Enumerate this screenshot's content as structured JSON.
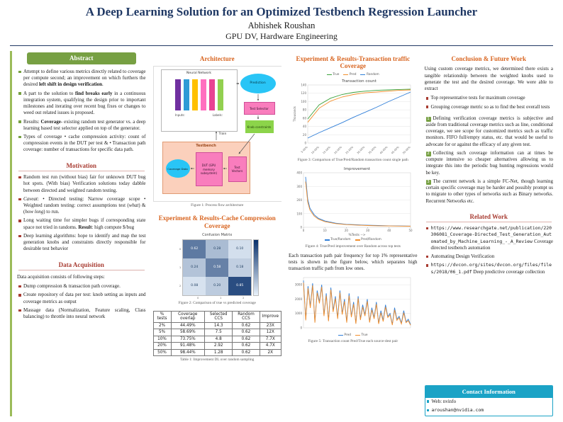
{
  "palette": {
    "navy": "#1F3864",
    "green": "#77A043",
    "green_light": "#9BBB59",
    "red": "#A83C32",
    "orange": "#D8641F",
    "teal": "#1BA3C6",
    "cyan": "#29C5F6",
    "salmon": "#FBD0BC"
  },
  "header": {
    "title": "A Deep Learning Solution for an Optimized Testbench Regression Launcher",
    "author": "Abhishek Roushan",
    "affiliation": "GPU DV, Hardware Engineering"
  },
  "abstract": {
    "title": "Abstract",
    "bullets": [
      [
        {
          "t": "Attempt to define various metrics directly related to coverage per compute second; an improvement on which furthers the desired "
        },
        {
          "t": "left shift in design verification",
          "b": true
        },
        {
          "t": "."
        }
      ],
      [
        {
          "t": "A part to the solution to "
        },
        {
          "t": "find breaks early",
          "b": true
        },
        {
          "t": " in a continuous integration system, qualifying the design prior to important milestones and iterating over recent bug fixes or changes to weed out related issues is proposed."
        }
      ],
      [
        {
          "t": "Results: "
        },
        {
          "t": "Coverage",
          "b": true
        },
        {
          "t": "- existing random test generator vs. a deep learning based test selector applied on top of the generator."
        }
      ],
      [
        {
          "t": "Types of coverage • cache compression activity: count of compression events in the DUT per test & • Transaction path coverage: number of transactions for specific data path."
        }
      ]
    ]
  },
  "motivation": {
    "title": "Motivation",
    "bullets": [
      [
        {
          "t": "Random test run (without bias) fair for unknown DUT bug hot spots. (With bias) Verification solutions today dabble between directed and weighted random testing."
        }
      ],
      [
        {
          "t": "Caveat",
          "i": true
        },
        {
          "t": ": • Directed testing: Narrow coverage scope • Weighted random testing: correct assumptions test ("
        },
        {
          "t": "what",
          "i": true
        },
        {
          "t": ") & ("
        },
        {
          "t": "how long",
          "i": true
        },
        {
          "t": ") to run."
        }
      ],
      [
        {
          "t": "Long waiting time for simpler bugs if corresponding state space not tried in randoms. "
        },
        {
          "t": "Result",
          "b": true
        },
        {
          "t": ": high compute $/bug"
        }
      ],
      [
        {
          "t": "Deep learning algorithms: hope to identify and map the test generation knobs and constraints directly responsible for desirable test behavior"
        }
      ]
    ]
  },
  "data_acquisition": {
    "title": "Data Acquisition",
    "intro": "Data acquisition consists of following steps:",
    "bullets": [
      "Dump compression & transaction path coverage.",
      "Create repository of data per test: knob setting as inputs and coverage metrics as output",
      "Massage data (Normalization, Feature scaling, Class balancing) to throttle into neural network"
    ]
  },
  "architecture": {
    "title": "Architecture",
    "figure1": {
      "caption": "Figure 1: Process flow architecture",
      "labels": {
        "neural_network": "Neural Network",
        "prediction": "Prediction",
        "test_selector": "Test Selector",
        "knob_constraints": "Knob constraints",
        "train": "Train",
        "testbench": "Testbench",
        "dut": "DUT (GPU memory subsystem)",
        "test_vectors": "Test Vectors",
        "coverage_data": "Coverage Data",
        "inputs_label": "Inputs:",
        "labels_label": "Labels:"
      }
    }
  },
  "cache_results": {
    "title": "Experiment & Results-Cache Compression Coverage",
    "figure2_caption": "Figure 2: Comparison of true vs predicted coverage",
    "table1": {
      "caption": "Table 1: Improvement DL over random sampling",
      "headers": [
        "% tests",
        "Coverage overlap",
        "Selected CCS",
        "Random CCS",
        "Improve"
      ],
      "rows": [
        [
          "2%",
          "44.49%",
          "14.3",
          "0.62",
          "23X"
        ],
        [
          "5%",
          "58.69%",
          "7.5",
          "0.62",
          "12X"
        ],
        [
          "10%",
          "73.75%",
          "4.8",
          "0.62",
          "7.7X"
        ],
        [
          "20%",
          "91.48%",
          "2.92",
          "0.62",
          "4.7X"
        ],
        [
          "50%",
          "98.44%",
          "1.28",
          "0.62",
          "2X"
        ]
      ]
    }
  },
  "transaction_results": {
    "title": "Experiment & Results-Transaction traffic Coverage",
    "figure3_caption": "Figure 3: Comparison of True/Pred/Random transaction count single path",
    "figure4_caption": "Figure 4: True/Pred improvement over Random across top tests",
    "paragraph": "Each transaction path pair frequency for top 1% representative tests is shown in the figure below, which separates high transaction traffic path from low ones.",
    "figure5_caption": "Figure 5: Transaction count Pred/True each source-dest pair"
  },
  "conclusion": {
    "title": "Conclusion & Future Work",
    "intro": "Using custom coverage metrics, we determined there exists a tangible relationship between the weighted knobs used to generate the test and the desired coverage. We were able to extract",
    "bullets": [
      "Top representative tests for maximum coverage",
      "Grouping coverage metric so as to find the best overall tests"
    ],
    "numbered": [
      "Defining verification coverage metrics is subjective and aside from traditional coverage metrics such as line, conditional coverage, we see scope for customized metrics such as traffic monitors. FIFO full/empty status, etc. that would be useful to advocate for or against the efficacy of any given test.",
      "Collecting such coverage information can at times be compute intensive so cheaper alternatives allowing us to integrate this into the periodic bug hunting regressions would be key.",
      "The current network is a simple FC-Net, though learning certain specific coverage may be harder and possibly prompt us to migrate to other types of networks such as Binary networks. Recurrent Networks etc."
    ]
  },
  "related_work": {
    "title": "Related Work",
    "items": [
      [
        {
          "t": "https://www.researchgate.net/publication/220306081_Coverage-Directed_Test_Generation_Automated_by_Machine_Learning_-_A_Review",
          "code": true
        },
        {
          "t": " Coverage directed testbench automation"
        }
      ],
      [
        {
          "t": "Automating Design Verification"
        }
      ],
      [
        {
          "t": "https://dvcon.org/sites/dvcon.org/files/files/2018/06_1.pdf",
          "code": true
        },
        {
          "t": " Deep predictive coverage collection"
        }
      ]
    ]
  },
  "contact": {
    "title": "Contact Information",
    "items": [
      [
        {
          "t": "Web: nvinfo"
        }
      ],
      [
        {
          "t": "aroushan@nvidia.com",
          "code": true
        }
      ]
    ]
  },
  "chart_data": [
    {
      "id": "fig2_confusion",
      "type": "heatmap",
      "title": "Confusion Matrix",
      "rows": [
        "0",
        "1",
        "2"
      ],
      "cols": [
        "0",
        "1",
        "2"
      ],
      "values": [
        [
          0.62,
          0.28,
          0.1
        ],
        [
          0.24,
          0.58,
          0.18
        ],
        [
          0.08,
          0.2,
          0.85
        ]
      ]
    },
    {
      "id": "fig3_transaction_count",
      "type": "line",
      "title": "Transaction count",
      "ylabel": "Thousands",
      "ylim": [
        0,
        140
      ],
      "yticks": [
        0,
        20,
        40,
        60,
        80,
        100,
        120,
        140
      ],
      "x_tick_labels": [
        "5.00%",
        "10.00%",
        "15.00%",
        "20.00%",
        "25.00%",
        "30.00%",
        "35.00%",
        "40.00%",
        "45.00%",
        "50.00%"
      ],
      "legend_position": "top",
      "series": [
        {
          "name": "True",
          "color": "#3BA23B",
          "values": [
            58,
            92,
            108,
            117,
            122,
            125,
            127,
            128,
            129,
            130
          ]
        },
        {
          "name": "Pred",
          "color": "#F28E2B",
          "values": [
            50,
            84,
            101,
            111,
            117,
            121,
            123,
            125,
            127,
            128
          ]
        },
        {
          "name": "Random",
          "color": "#2F7ED8",
          "values": [
            12,
            25,
            37,
            49,
            62,
            74,
            86,
            99,
            111,
            123
          ]
        }
      ]
    },
    {
      "id": "fig4_improvement",
      "type": "line",
      "title": "Improvement",
      "xlabel": "%Tests -->",
      "x": [
        1,
        2,
        3,
        5,
        7,
        10,
        15,
        20,
        25,
        30,
        35,
        40,
        45,
        50
      ],
      "xlim": [
        0,
        50
      ],
      "xticks": [
        0,
        10,
        20,
        30,
        40,
        50
      ],
      "ylim": [
        0,
        400
      ],
      "yticks": [
        0,
        100,
        200,
        300,
        400
      ],
      "legend_position": "bottom",
      "series": [
        {
          "name": "True/Random",
          "color": "#2F7ED8",
          "values": [
            370,
            205,
            140,
            92,
            66,
            46,
            30,
            22,
            18,
            15,
            13,
            11,
            10,
            9
          ]
        },
        {
          "name": "Pred/Random",
          "color": "#F28E2B",
          "values": [
            335,
            185,
            126,
            82,
            59,
            41,
            27,
            20,
            16,
            13,
            11,
            10,
            9,
            8
          ]
        }
      ]
    },
    {
      "id": "fig5_path_pairs",
      "type": "line",
      "title": "",
      "ylim": [
        0,
        3500
      ],
      "yticks": [
        0,
        1000,
        2000,
        3000
      ],
      "legend_position": "bottom",
      "series": [
        {
          "name": "Pred",
          "color": "#2F7ED8",
          "values": [
            3300,
            600,
            2900,
            1500,
            3100,
            420,
            2600,
            1800,
            3000,
            900,
            2400,
            520,
            2800,
            1200,
            2200,
            700,
            2600,
            1000,
            2000,
            420,
            2400,
            820,
            1800,
            330,
            2200,
            620,
            1600,
            900,
            2000,
            430,
            1400,
            700,
            1800,
            320,
            1200,
            520,
            1600,
            800,
            1000,
            240,
            1400,
            600,
            800,
            330,
            1200,
            420,
            600,
            230
          ]
        },
        {
          "name": "True",
          "color": "#F28E2B",
          "values": [
            3150,
            520,
            2750,
            1380,
            2950,
            360,
            2450,
            1700,
            2850,
            820,
            2250,
            460,
            2650,
            1100,
            2050,
            620,
            2450,
            920,
            1850,
            360,
            2250,
            740,
            1650,
            280,
            2050,
            540,
            1450,
            820,
            1850,
            370,
            1250,
            620,
            1650,
            270,
            1050,
            440,
            1450,
            720,
            900,
            190,
            1250,
            520,
            700,
            270,
            1050,
            360,
            500,
            180
          ]
        }
      ]
    }
  ]
}
